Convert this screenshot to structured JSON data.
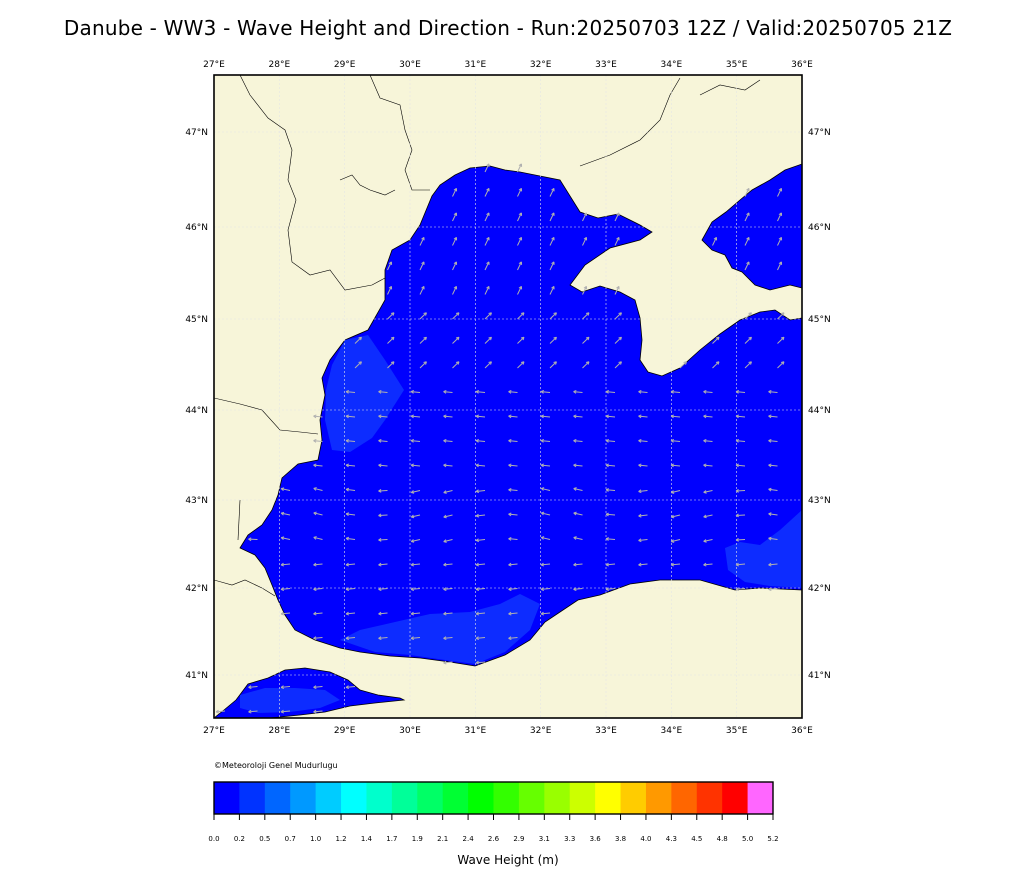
{
  "title": "Danube - WW3 - Wave Height and Direction - Run:20250703 12Z / Valid:20250705 21Z",
  "map": {
    "lon_labels": [
      "27°E",
      "28°E",
      "29°E",
      "30°E",
      "31°E",
      "32°E",
      "33°E",
      "34°E",
      "35°E",
      "36°E"
    ],
    "lat_labels": [
      "47°N",
      "46°N",
      "45°N",
      "44°N",
      "43°N",
      "42°N",
      "41°N"
    ],
    "lon_range": [
      27,
      36
    ],
    "lat_range": [
      40.5,
      47.6
    ],
    "land_color": "#f7f5d9",
    "sea_color": "#0000fe",
    "sea_light_color": "#0d2cff",
    "arrow_color": "#b0b0b0",
    "gridlines": true
  },
  "copyright": "©Meteoroloji Genel Mudurlugu",
  "colorbar": {
    "label": "Wave Height (m)",
    "ticks": [
      "0.0",
      "0.2",
      "0.5",
      "0.7",
      "1.0",
      "1.2",
      "1.4",
      "1.7",
      "1.9",
      "2.1",
      "2.4",
      "2.6",
      "2.9",
      "3.1",
      "3.3",
      "3.6",
      "3.8",
      "4.0",
      "4.3",
      "4.5",
      "4.8",
      "5.0",
      "5.2"
    ],
    "colors": [
      "#0000ff",
      "#0033ff",
      "#0066ff",
      "#0099ff",
      "#00ccff",
      "#00ffff",
      "#00ffcc",
      "#00ff99",
      "#00ff66",
      "#00ff33",
      "#00ff00",
      "#33ff00",
      "#66ff00",
      "#99ff00",
      "#ccff00",
      "#ffff00",
      "#ffcc00",
      "#ff9900",
      "#ff6600",
      "#ff3300",
      "#ff0000",
      "#ff66ff"
    ]
  }
}
